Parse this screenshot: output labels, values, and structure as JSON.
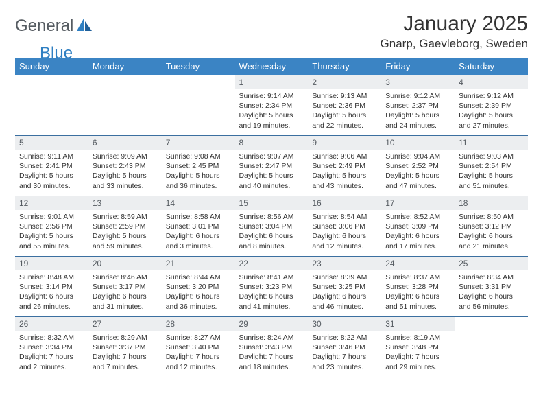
{
  "brand": {
    "left": "General",
    "right": "Blue"
  },
  "title": "January 2025",
  "location": "Gnarp, Gaevleborg, Sweden",
  "colors": {
    "header_bg": "#3b84c4",
    "header_text": "#ffffff",
    "row_border": "#3b6fa0",
    "daynum_bg": "#eceef0",
    "daynum_text": "#555b61",
    "body_text": "#333333",
    "logo_blue": "#2f7fc2",
    "logo_gray": "#555b61"
  },
  "typography": {
    "title_fontsize": 30,
    "location_fontsize": 17,
    "weekday_fontsize": 13,
    "daynum_fontsize": 12,
    "dayinfo_fontsize": 10.5
  },
  "weekdays": [
    "Sunday",
    "Monday",
    "Tuesday",
    "Wednesday",
    "Thursday",
    "Friday",
    "Saturday"
  ],
  "weeks": [
    [
      {
        "empty": true
      },
      {
        "empty": true
      },
      {
        "empty": true
      },
      {
        "num": "1",
        "sunrise": "9:14 AM",
        "sunset": "2:34 PM",
        "daylight": "5 hours and 19 minutes."
      },
      {
        "num": "2",
        "sunrise": "9:13 AM",
        "sunset": "2:36 PM",
        "daylight": "5 hours and 22 minutes."
      },
      {
        "num": "3",
        "sunrise": "9:12 AM",
        "sunset": "2:37 PM",
        "daylight": "5 hours and 24 minutes."
      },
      {
        "num": "4",
        "sunrise": "9:12 AM",
        "sunset": "2:39 PM",
        "daylight": "5 hours and 27 minutes."
      }
    ],
    [
      {
        "num": "5",
        "sunrise": "9:11 AM",
        "sunset": "2:41 PM",
        "daylight": "5 hours and 30 minutes."
      },
      {
        "num": "6",
        "sunrise": "9:09 AM",
        "sunset": "2:43 PM",
        "daylight": "5 hours and 33 minutes."
      },
      {
        "num": "7",
        "sunrise": "9:08 AM",
        "sunset": "2:45 PM",
        "daylight": "5 hours and 36 minutes."
      },
      {
        "num": "8",
        "sunrise": "9:07 AM",
        "sunset": "2:47 PM",
        "daylight": "5 hours and 40 minutes."
      },
      {
        "num": "9",
        "sunrise": "9:06 AM",
        "sunset": "2:49 PM",
        "daylight": "5 hours and 43 minutes."
      },
      {
        "num": "10",
        "sunrise": "9:04 AM",
        "sunset": "2:52 PM",
        "daylight": "5 hours and 47 minutes."
      },
      {
        "num": "11",
        "sunrise": "9:03 AM",
        "sunset": "2:54 PM",
        "daylight": "5 hours and 51 minutes."
      }
    ],
    [
      {
        "num": "12",
        "sunrise": "9:01 AM",
        "sunset": "2:56 PM",
        "daylight": "5 hours and 55 minutes."
      },
      {
        "num": "13",
        "sunrise": "8:59 AM",
        "sunset": "2:59 PM",
        "daylight": "5 hours and 59 minutes."
      },
      {
        "num": "14",
        "sunrise": "8:58 AM",
        "sunset": "3:01 PM",
        "daylight": "6 hours and 3 minutes."
      },
      {
        "num": "15",
        "sunrise": "8:56 AM",
        "sunset": "3:04 PM",
        "daylight": "6 hours and 8 minutes."
      },
      {
        "num": "16",
        "sunrise": "8:54 AM",
        "sunset": "3:06 PM",
        "daylight": "6 hours and 12 minutes."
      },
      {
        "num": "17",
        "sunrise": "8:52 AM",
        "sunset": "3:09 PM",
        "daylight": "6 hours and 17 minutes."
      },
      {
        "num": "18",
        "sunrise": "8:50 AM",
        "sunset": "3:12 PM",
        "daylight": "6 hours and 21 minutes."
      }
    ],
    [
      {
        "num": "19",
        "sunrise": "8:48 AM",
        "sunset": "3:14 PM",
        "daylight": "6 hours and 26 minutes."
      },
      {
        "num": "20",
        "sunrise": "8:46 AM",
        "sunset": "3:17 PM",
        "daylight": "6 hours and 31 minutes."
      },
      {
        "num": "21",
        "sunrise": "8:44 AM",
        "sunset": "3:20 PM",
        "daylight": "6 hours and 36 minutes."
      },
      {
        "num": "22",
        "sunrise": "8:41 AM",
        "sunset": "3:23 PM",
        "daylight": "6 hours and 41 minutes."
      },
      {
        "num": "23",
        "sunrise": "8:39 AM",
        "sunset": "3:25 PM",
        "daylight": "6 hours and 46 minutes."
      },
      {
        "num": "24",
        "sunrise": "8:37 AM",
        "sunset": "3:28 PM",
        "daylight": "6 hours and 51 minutes."
      },
      {
        "num": "25",
        "sunrise": "8:34 AM",
        "sunset": "3:31 PM",
        "daylight": "6 hours and 56 minutes."
      }
    ],
    [
      {
        "num": "26",
        "sunrise": "8:32 AM",
        "sunset": "3:34 PM",
        "daylight": "7 hours and 2 minutes."
      },
      {
        "num": "27",
        "sunrise": "8:29 AM",
        "sunset": "3:37 PM",
        "daylight": "7 hours and 7 minutes."
      },
      {
        "num": "28",
        "sunrise": "8:27 AM",
        "sunset": "3:40 PM",
        "daylight": "7 hours and 12 minutes."
      },
      {
        "num": "29",
        "sunrise": "8:24 AM",
        "sunset": "3:43 PM",
        "daylight": "7 hours and 18 minutes."
      },
      {
        "num": "30",
        "sunrise": "8:22 AM",
        "sunset": "3:46 PM",
        "daylight": "7 hours and 23 minutes."
      },
      {
        "num": "31",
        "sunrise": "8:19 AM",
        "sunset": "3:48 PM",
        "daylight": "7 hours and 29 minutes."
      },
      {
        "empty": true
      }
    ]
  ]
}
